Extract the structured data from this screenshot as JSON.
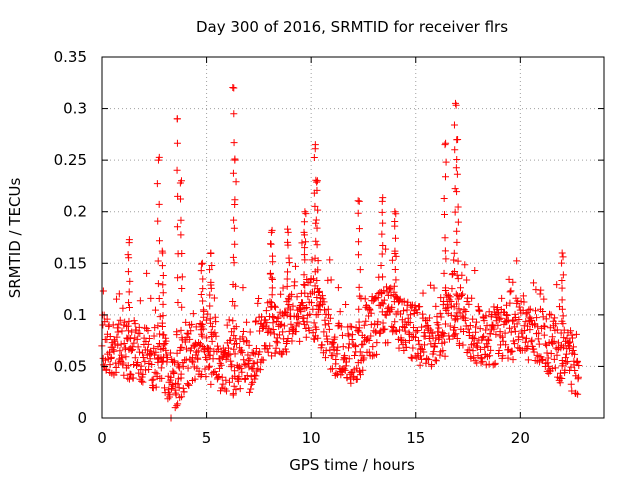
{
  "chart_data": {
    "type": "scatter",
    "title": "Day 300 of 2016, SRMTID for receiver flrs",
    "xlabel": "GPS time / hours",
    "ylabel": "SRMTID / TECUs",
    "xlim": [
      0,
      24
    ],
    "ylim": [
      0,
      0.35
    ],
    "xticks": [
      0,
      5,
      10,
      15,
      20
    ],
    "xtick_labels": [
      "0",
      "5",
      "10",
      "15",
      "20"
    ],
    "yticks": [
      0,
      0.05,
      0.1,
      0.15,
      0.2,
      0.25,
      0.3,
      0.35
    ],
    "ytick_labels": [
      "0",
      "0.05",
      "0.1",
      "0.15",
      "0.2",
      "0.25",
      "0.3",
      "0.35"
    ],
    "grid": true,
    "marker": "plus",
    "color": "#ff0000",
    "x_range_observed": [
      0.0,
      22.8
    ],
    "baseline_profile": {
      "x": [
        0.0,
        1.0,
        2.0,
        3.0,
        3.5,
        4.0,
        5.0,
        6.0,
        7.0,
        8.0,
        9.0,
        10.0,
        11.0,
        12.0,
        13.0,
        14.0,
        15.0,
        16.0,
        17.0,
        18.0,
        19.0,
        20.0,
        21.0,
        22.0,
        22.8
      ],
      "y": [
        0.07,
        0.07,
        0.06,
        0.05,
        0.03,
        0.06,
        0.065,
        0.05,
        0.05,
        0.09,
        0.09,
        0.11,
        0.07,
        0.06,
        0.09,
        0.1,
        0.08,
        0.08,
        0.1,
        0.08,
        0.08,
        0.09,
        0.08,
        0.06,
        0.05
      ]
    },
    "spikes": [
      {
        "x": 1.3,
        "y": 0.17
      },
      {
        "x": 2.7,
        "y": 0.25
      },
      {
        "x": 2.9,
        "y": 0.16
      },
      {
        "x": 3.6,
        "y": 0.29
      },
      {
        "x": 3.8,
        "y": 0.23
      },
      {
        "x": 4.8,
        "y": 0.15
      },
      {
        "x": 5.2,
        "y": 0.16
      },
      {
        "x": 6.3,
        "y": 0.32
      },
      {
        "x": 6.35,
        "y": 0.25
      },
      {
        "x": 8.1,
        "y": 0.18
      },
      {
        "x": 8.9,
        "y": 0.18
      },
      {
        "x": 9.7,
        "y": 0.2
      },
      {
        "x": 10.2,
        "y": 0.265
      },
      {
        "x": 10.3,
        "y": 0.23
      },
      {
        "x": 12.3,
        "y": 0.21
      },
      {
        "x": 13.4,
        "y": 0.21
      },
      {
        "x": 14.0,
        "y": 0.2
      },
      {
        "x": 16.4,
        "y": 0.265
      },
      {
        "x": 16.9,
        "y": 0.305
      },
      {
        "x": 17.0,
        "y": 0.27
      },
      {
        "x": 22.0,
        "y": 0.16
      }
    ],
    "minima": [
      {
        "x": 3.3,
        "y": 0.0
      },
      {
        "x": 3.5,
        "y": 0.01
      }
    ]
  }
}
